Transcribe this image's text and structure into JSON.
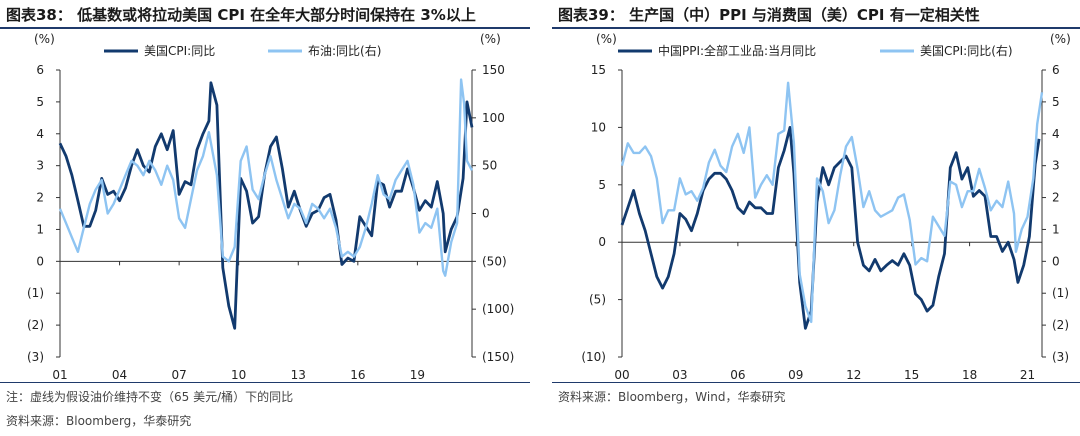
{
  "left": {
    "title": "图表38：  低基数或将拉动美国 CPI 在全年大部分时间保持在 3%以上",
    "note": "注：虚线为假设油价维持不变（65 美元/桶）下的同比",
    "source": "资料来源：Bloomberg，华泰研究"
  },
  "right": {
    "title": "图表39：  生产国（中）PPI 与消费国（美）CPI 有一定相关性",
    "source": "资料来源：Bloomberg，Wind，华泰研究"
  },
  "colors": {
    "dark": "#123a6e",
    "light": "#8ec4f2"
  },
  "chart_data": [
    {
      "type": "line",
      "ylabel": "(%)",
      "y2label": "(%)",
      "ylim": [
        -3,
        6
      ],
      "y2lim": [
        -150,
        150
      ],
      "yticks": [
        "6",
        "5",
        "4",
        "3",
        "2",
        "1",
        "0",
        "(1)",
        "(2)",
        "(3)"
      ],
      "y2ticks": [
        "150",
        "100",
        "50",
        "0",
        "(50)",
        "(100)",
        "(150)"
      ],
      "xticks": [
        "01",
        "04",
        "07",
        "10",
        "13",
        "16",
        "19"
      ],
      "xrange": [
        2001,
        2021.75
      ],
      "series": [
        {
          "name": "美国CPI:同比",
          "axis": "left",
          "x": [
            2001.0,
            2001.3,
            2001.6,
            2001.9,
            2002.2,
            2002.5,
            2002.8,
            2003.1,
            2003.4,
            2003.7,
            2004.0,
            2004.3,
            2004.6,
            2004.9,
            2005.2,
            2005.5,
            2005.8,
            2006.1,
            2006.4,
            2006.7,
            2007.0,
            2007.3,
            2007.6,
            2007.9,
            2008.2,
            2008.5,
            2008.6,
            2008.9,
            2009.2,
            2009.5,
            2009.8,
            2010.1,
            2010.4,
            2010.7,
            2011.0,
            2011.3,
            2011.6,
            2011.9,
            2012.2,
            2012.5,
            2012.8,
            2013.1,
            2013.4,
            2013.7,
            2014.0,
            2014.3,
            2014.6,
            2014.9,
            2015.2,
            2015.5,
            2015.8,
            2016.1,
            2016.4,
            2016.7,
            2017.0,
            2017.3,
            2017.6,
            2017.9,
            2018.2,
            2018.5,
            2018.8,
            2019.1,
            2019.4,
            2019.7,
            2020.0,
            2020.3,
            2020.4,
            2020.7,
            2021.0,
            2021.3,
            2021.5,
            2021.75
          ],
          "values": [
            3.7,
            3.3,
            2.7,
            1.9,
            1.1,
            1.1,
            1.6,
            2.6,
            2.1,
            2.2,
            1.9,
            2.3,
            3.0,
            3.5,
            3.0,
            2.8,
            3.6,
            4.0,
            3.5,
            4.1,
            2.1,
            2.5,
            2.4,
            3.5,
            4.0,
            4.4,
            5.6,
            4.9,
            -0.2,
            -1.4,
            -2.1,
            2.6,
            2.2,
            1.2,
            1.4,
            2.7,
            3.6,
            3.9,
            2.9,
            1.7,
            2.2,
            1.6,
            1.1,
            1.5,
            1.6,
            2.0,
            2.1,
            1.3,
            -0.1,
            0.1,
            0.0,
            1.4,
            1.1,
            0.8,
            2.5,
            2.4,
            1.7,
            2.2,
            2.2,
            2.9,
            2.3,
            1.6,
            1.9,
            1.7,
            2.5,
            1.5,
            0.3,
            1.0,
            1.4,
            2.6,
            5.0,
            4.2
          ]
        },
        {
          "name": "布油:同比(右)",
          "axis": "right",
          "x": [
            2001.0,
            2001.3,
            2001.6,
            2001.9,
            2002.2,
            2002.5,
            2002.8,
            2003.1,
            2003.4,
            2003.7,
            2004.0,
            2004.3,
            2004.6,
            2004.9,
            2005.2,
            2005.5,
            2005.8,
            2006.1,
            2006.4,
            2006.7,
            2007.0,
            2007.3,
            2007.6,
            2007.9,
            2008.2,
            2008.5,
            2008.9,
            2009.2,
            2009.5,
            2009.8,
            2010.1,
            2010.4,
            2010.7,
            2011.0,
            2011.3,
            2011.6,
            2011.9,
            2012.2,
            2012.5,
            2012.8,
            2013.1,
            2013.4,
            2013.7,
            2014.0,
            2014.3,
            2014.6,
            2014.9,
            2015.2,
            2015.5,
            2015.8,
            2016.1,
            2016.4,
            2016.7,
            2017.0,
            2017.3,
            2017.6,
            2017.9,
            2018.2,
            2018.5,
            2018.8,
            2019.1,
            2019.4,
            2019.7,
            2020.0,
            2020.3,
            2020.4,
            2020.7,
            2021.0,
            2021.2,
            2021.35,
            2021.5,
            2021.75
          ],
          "values": [
            5,
            -10,
            -25,
            -40,
            -15,
            10,
            25,
            35,
            0,
            10,
            25,
            40,
            55,
            50,
            40,
            55,
            45,
            30,
            50,
            35,
            -5,
            -15,
            15,
            45,
            60,
            85,
            40,
            -45,
            -50,
            -35,
            55,
            70,
            25,
            15,
            40,
            60,
            35,
            15,
            -5,
            10,
            5,
            -10,
            10,
            5,
            -5,
            5,
            -15,
            -45,
            -40,
            -45,
            -35,
            -15,
            10,
            40,
            20,
            15,
            35,
            45,
            55,
            30,
            -20,
            -10,
            -15,
            5,
            -60,
            -65,
            -30,
            -10,
            140,
            115,
            55,
            45
          ]
        }
      ]
    },
    {
      "type": "line",
      "ylabel": "(%)",
      "y2label": "(%)",
      "ylim": [
        -10,
        15
      ],
      "y2lim": [
        -3,
        6
      ],
      "yticks": [
        "15",
        "10",
        "5",
        "0",
        "(5)",
        "(10)"
      ],
      "y2ticks": [
        "6",
        "5",
        "4",
        "3",
        "2",
        "1",
        "0",
        "(1)",
        "(2)",
        "(3)"
      ],
      "xticks": [
        "00",
        "03",
        "06",
        "09",
        "12",
        "15",
        "18",
        "21"
      ],
      "xrange": [
        2000,
        2021.75
      ],
      "series": [
        {
          "name": "中国PPI:全部工业品:当月同比",
          "axis": "left",
          "x": [
            2000.0,
            2000.3,
            2000.6,
            2000.9,
            2001.2,
            2001.5,
            2001.8,
            2002.1,
            2002.4,
            2002.7,
            2003.0,
            2003.3,
            2003.6,
            2003.9,
            2004.2,
            2004.5,
            2004.8,
            2005.1,
            2005.4,
            2005.7,
            2006.0,
            2006.3,
            2006.6,
            2006.9,
            2007.2,
            2007.5,
            2007.8,
            2008.1,
            2008.4,
            2008.7,
            2008.9,
            2009.2,
            2009.5,
            2009.8,
            2010.1,
            2010.4,
            2010.7,
            2011.0,
            2011.3,
            2011.6,
            2011.9,
            2012.2,
            2012.5,
            2012.8,
            2013.1,
            2013.4,
            2013.7,
            2014.0,
            2014.3,
            2014.6,
            2014.9,
            2015.2,
            2015.5,
            2015.8,
            2016.1,
            2016.4,
            2016.7,
            2017.0,
            2017.3,
            2017.6,
            2017.9,
            2018.2,
            2018.5,
            2018.8,
            2019.1,
            2019.4,
            2019.7,
            2020.0,
            2020.3,
            2020.5,
            2020.8,
            2021.1,
            2021.4,
            2021.6
          ],
          "values": [
            1.5,
            3.0,
            4.5,
            2.5,
            1.0,
            -1.0,
            -3.0,
            -4.0,
            -3.0,
            -1.0,
            2.5,
            2.0,
            1.0,
            2.5,
            4.5,
            5.5,
            6.0,
            6.0,
            5.5,
            4.5,
            3.0,
            2.5,
            3.5,
            3.0,
            3.0,
            2.5,
            2.5,
            6.5,
            8.0,
            10.0,
            6.0,
            -3.5,
            -7.5,
            -6.0,
            3.5,
            6.5,
            5.0,
            6.5,
            7.0,
            7.5,
            6.5,
            0.0,
            -2.0,
            -2.5,
            -1.5,
            -2.5,
            -2.0,
            -1.6,
            -2.0,
            -1.0,
            -2.0,
            -4.5,
            -5.0,
            -6.0,
            -5.5,
            -3.0,
            -1.0,
            6.5,
            7.8,
            5.5,
            6.5,
            4.0,
            4.5,
            4.0,
            0.5,
            0.5,
            -0.8,
            0.0,
            -1.5,
            -3.5,
            -2.0,
            0.5,
            6.8,
            9.0
          ]
        },
        {
          "name": "美国CPI:同比(右)",
          "axis": "right",
          "x": [
            2000.0,
            2000.3,
            2000.6,
            2000.9,
            2001.2,
            2001.5,
            2001.8,
            2002.1,
            2002.4,
            2002.7,
            2003.0,
            2003.3,
            2003.6,
            2003.9,
            2004.2,
            2004.5,
            2004.8,
            2005.1,
            2005.4,
            2005.7,
            2006.0,
            2006.3,
            2006.6,
            2006.9,
            2007.2,
            2007.5,
            2007.8,
            2008.1,
            2008.4,
            2008.6,
            2008.9,
            2009.2,
            2009.5,
            2009.8,
            2010.1,
            2010.4,
            2010.7,
            2011.0,
            2011.3,
            2011.6,
            2011.9,
            2012.2,
            2012.5,
            2012.8,
            2013.1,
            2013.4,
            2013.7,
            2014.0,
            2014.3,
            2014.6,
            2014.9,
            2015.2,
            2015.5,
            2015.8,
            2016.1,
            2016.4,
            2016.7,
            2017.0,
            2017.3,
            2017.6,
            2017.9,
            2018.2,
            2018.5,
            2018.8,
            2019.1,
            2019.4,
            2019.7,
            2020.0,
            2020.3,
            2020.4,
            2020.7,
            2021.0,
            2021.3,
            2021.5,
            2021.75
          ],
          "values": [
            3.0,
            3.7,
            3.4,
            3.4,
            3.6,
            3.3,
            2.6,
            1.2,
            1.6,
            1.6,
            2.6,
            2.1,
            2.2,
            1.9,
            2.3,
            3.1,
            3.5,
            3.0,
            2.8,
            3.6,
            4.0,
            3.4,
            4.2,
            2.0,
            2.4,
            2.7,
            2.4,
            4.0,
            4.1,
            5.6,
            3.7,
            -0.4,
            -1.4,
            -1.9,
            2.6,
            2.2,
            1.2,
            1.6,
            2.7,
            3.6,
            3.9,
            2.9,
            1.7,
            2.2,
            1.6,
            1.4,
            1.5,
            1.6,
            2.0,
            2.1,
            1.3,
            -0.1,
            0.1,
            0.0,
            1.4,
            1.1,
            0.8,
            2.5,
            2.4,
            1.7,
            2.2,
            2.2,
            2.9,
            2.3,
            1.6,
            1.9,
            1.7,
            2.5,
            1.5,
            0.3,
            1.0,
            1.4,
            2.6,
            4.3,
            5.3
          ]
        }
      ]
    }
  ]
}
